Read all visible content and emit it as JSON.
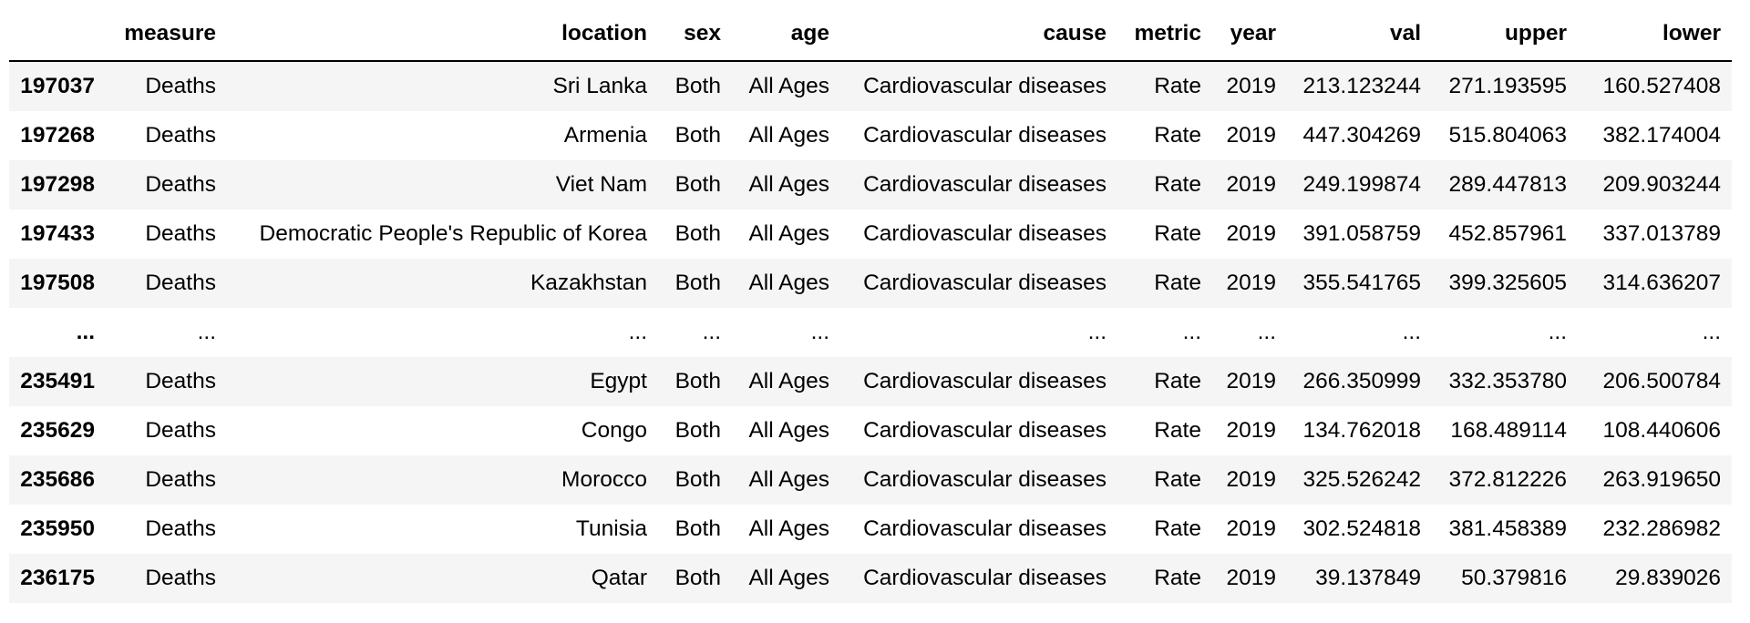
{
  "table": {
    "columns": [
      "",
      "measure",
      "location",
      "sex",
      "age",
      "cause",
      "metric",
      "year",
      "val",
      "upper",
      "lower"
    ],
    "rows": [
      [
        "197037",
        "Deaths",
        "Sri Lanka",
        "Both",
        "All Ages",
        "Cardiovascular diseases",
        "Rate",
        "2019",
        "213.123244",
        "271.193595",
        "160.527408"
      ],
      [
        "197268",
        "Deaths",
        "Armenia",
        "Both",
        "All Ages",
        "Cardiovascular diseases",
        "Rate",
        "2019",
        "447.304269",
        "515.804063",
        "382.174004"
      ],
      [
        "197298",
        "Deaths",
        "Viet Nam",
        "Both",
        "All Ages",
        "Cardiovascular diseases",
        "Rate",
        "2019",
        "249.199874",
        "289.447813",
        "209.903244"
      ],
      [
        "197433",
        "Deaths",
        "Democratic People's Republic of Korea",
        "Both",
        "All Ages",
        "Cardiovascular diseases",
        "Rate",
        "2019",
        "391.058759",
        "452.857961",
        "337.013789"
      ],
      [
        "197508",
        "Deaths",
        "Kazakhstan",
        "Both",
        "All Ages",
        "Cardiovascular diseases",
        "Rate",
        "2019",
        "355.541765",
        "399.325605",
        "314.636207"
      ],
      [
        "...",
        "...",
        "...",
        "...",
        "...",
        "...",
        "...",
        "...",
        "...",
        "...",
        "..."
      ],
      [
        "235491",
        "Deaths",
        "Egypt",
        "Both",
        "All Ages",
        "Cardiovascular diseases",
        "Rate",
        "2019",
        "266.350999",
        "332.353780",
        "206.500784"
      ],
      [
        "235629",
        "Deaths",
        "Congo",
        "Both",
        "All Ages",
        "Cardiovascular diseases",
        "Rate",
        "2019",
        "134.762018",
        "168.489114",
        "108.440606"
      ],
      [
        "235686",
        "Deaths",
        "Morocco",
        "Both",
        "All Ages",
        "Cardiovascular diseases",
        "Rate",
        "2019",
        "325.526242",
        "372.812226",
        "263.919650"
      ],
      [
        "235950",
        "Deaths",
        "Tunisia",
        "Both",
        "All Ages",
        "Cardiovascular diseases",
        "Rate",
        "2019",
        "302.524818",
        "381.458389",
        "232.286982"
      ],
      [
        "236175",
        "Deaths",
        "Qatar",
        "Both",
        "All Ages",
        "Cardiovascular diseases",
        "Rate",
        "2019",
        "39.137849",
        "50.379816",
        "29.839026"
      ]
    ]
  }
}
